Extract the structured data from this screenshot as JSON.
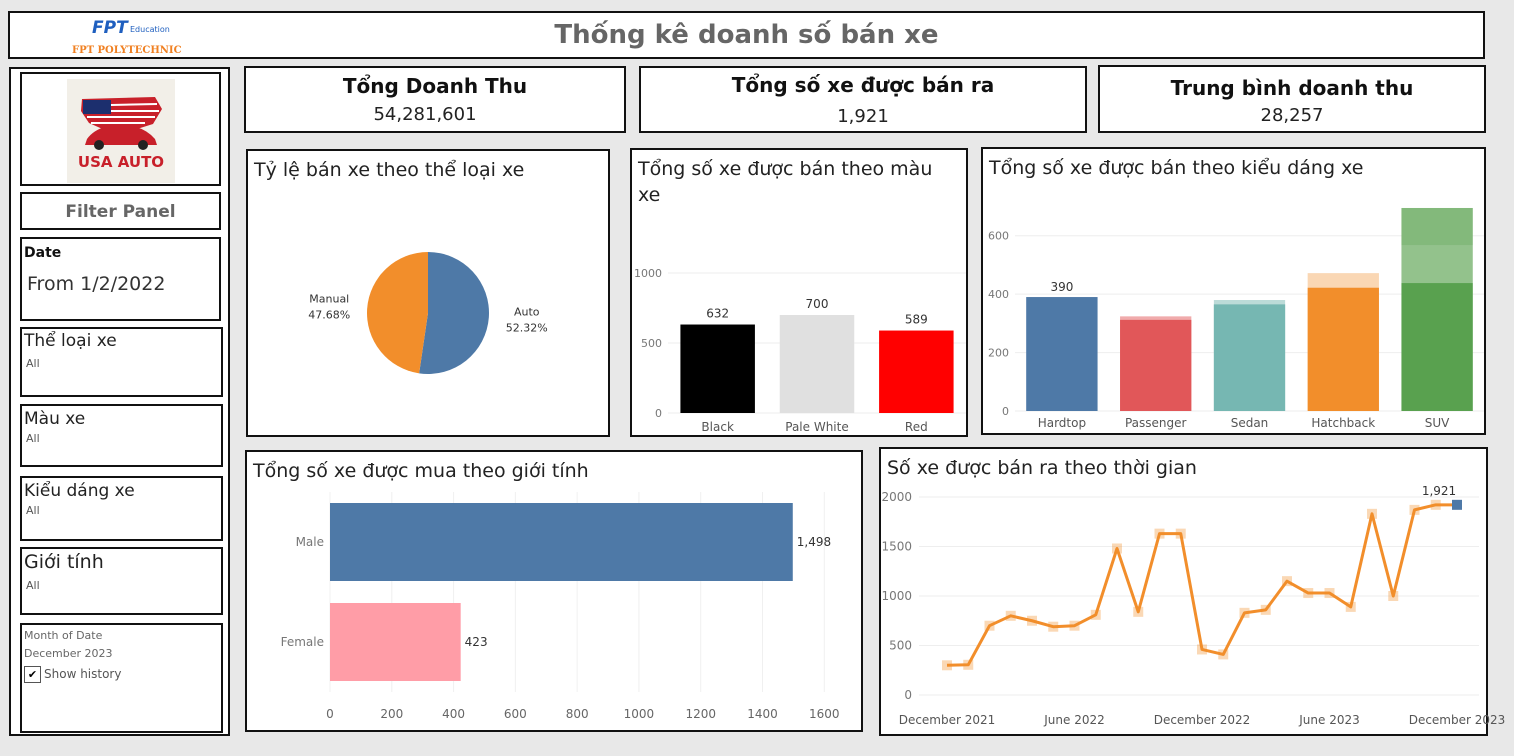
{
  "header": {
    "brand_fpt": "FPT",
    "brand_education": "Education",
    "brand_school": "FPT POLYTECHNIC",
    "title": "Thống kê doanh số bán xe"
  },
  "sidebar": {
    "logo_text": "USA AUTO",
    "filter_panel": "Filter Panel",
    "date_label": "Date",
    "date_value": "From 1/2/2022",
    "filters": [
      {
        "label": "Thể loại xe",
        "value": "All"
      },
      {
        "label": "Màu xe",
        "value": "All"
      },
      {
        "label": "Kiểu dáng xe",
        "value": "All"
      },
      {
        "label": "Giới tính",
        "value": "All"
      }
    ],
    "month_label": "Month of Date",
    "month_value": "December 2023",
    "show_history": "Show history"
  },
  "kpis": [
    {
      "title": "Tổng Doanh Thu",
      "value": "54,281,601"
    },
    {
      "title": "Tổng số xe được bán ra",
      "value": "1,921"
    },
    {
      "title": "Trung bình doanh thu",
      "value": "28,257"
    }
  ],
  "colors": {
    "blue": "#4e79a7",
    "orange": "#f28e2b",
    "pink": "#ff9da7"
  },
  "chart_data": [
    {
      "type": "pie",
      "title": "Tỷ lệ bán xe theo thể loại xe",
      "slices": [
        {
          "label": "Auto",
          "pct_label": "52.32%",
          "value": 52.32,
          "color": "#4e79a7"
        },
        {
          "label": "Manual",
          "pct_label": "47.68%",
          "value": 47.68,
          "color": "#f28e2b"
        }
      ]
    },
    {
      "type": "bar",
      "title": "Tổng số xe được bán theo màu xe",
      "categories": [
        "Black",
        "Pale White",
        "Red"
      ],
      "values": [
        632,
        700,
        589
      ],
      "colors": [
        "#000000",
        "#e0e0e0",
        "#ff0000"
      ],
      "ylim": [
        0,
        1450
      ],
      "yticks": [
        0,
        500,
        1000
      ]
    },
    {
      "type": "bar",
      "title": "Tổng số xe được bán theo kiểu dáng xe",
      "categories": [
        "Hardtop",
        "Passenger",
        "Sedan",
        "Hatchback",
        "SUV"
      ],
      "values": [
        390,
        312,
        365,
        422,
        438
      ],
      "highlight_values": [
        390,
        324,
        380,
        472,
        695
      ],
      "extra_segments": [
        [],
        [],
        [],
        [],
        [
          [
            438,
            568
          ],
          [
            568,
            695
          ]
        ]
      ],
      "colors": [
        "#4e79a7",
        "#e15759",
        "#76b7b2",
        "#f28e2b",
        "#59a14f"
      ],
      "light_colors": [
        "#a7bcd3",
        "#f0abac",
        "#bcdbd8",
        "#fad7b4",
        "#acd0a7"
      ],
      "data_labels": [
        "390",
        "",
        "",
        "",
        ""
      ],
      "ylim": [
        0,
        760
      ],
      "yticks": [
        0,
        200,
        400,
        600
      ]
    },
    {
      "type": "bar",
      "orientation": "horizontal",
      "title": "Tổng số xe được mua theo giới tính",
      "categories": [
        "Male",
        "Female"
      ],
      "values": [
        1498,
        423
      ],
      "data_labels": [
        "1,498",
        "423"
      ],
      "colors": [
        "#4e79a7",
        "#ff9da7"
      ],
      "xlim": [
        0,
        1680
      ],
      "xticks": [
        0,
        200,
        400,
        600,
        800,
        1000,
        1200,
        1400,
        1600
      ]
    },
    {
      "type": "line",
      "title": "Số xe được bán ra theo thời gian",
      "x": [
        "2021-12",
        "2022-01",
        "2022-02",
        "2022-03",
        "2022-04",
        "2022-05",
        "2022-06",
        "2022-07",
        "2022-08",
        "2022-09",
        "2022-10",
        "2022-11",
        "2022-12",
        "2023-01",
        "2023-02",
        "2023-03",
        "2023-04",
        "2023-05",
        "2023-06",
        "2023-07",
        "2023-08",
        "2023-09",
        "2023-10",
        "2023-11",
        "2023-12"
      ],
      "values": [
        300,
        305,
        700,
        800,
        750,
        690,
        700,
        810,
        1480,
        840,
        1630,
        1630,
        460,
        410,
        830,
        860,
        1150,
        1030,
        1030,
        890,
        1830,
        1000,
        1870,
        1921,
        1921
      ],
      "end_label": "1,921",
      "xtick_labels": [
        "December 2021",
        "June 2022",
        "December 2022",
        "June 2023",
        "December 2023"
      ],
      "xtick_index": [
        0,
        6,
        12,
        18,
        24
      ],
      "ylim": [
        0,
        2000
      ],
      "yticks": [
        0,
        500,
        1000,
        1500,
        2000
      ]
    }
  ]
}
